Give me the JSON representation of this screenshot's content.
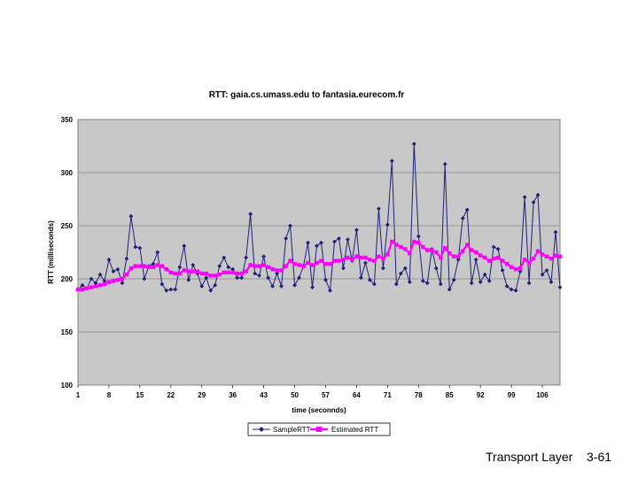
{
  "chart_data": {
    "type": "line",
    "title": "RTT: gaia.cs.umass.edu to fantasia.eurecom.fr",
    "xlabel": "time (seconnds)",
    "ylabel": "RTT (milliseconds)",
    "ylim": [
      100,
      350
    ],
    "yticks": [
      100,
      150,
      200,
      250,
      300,
      350
    ],
    "xlim": [
      1,
      110
    ],
    "xticks": [
      1,
      8,
      15,
      22,
      29,
      36,
      43,
      50,
      57,
      64,
      71,
      78,
      85,
      92,
      99,
      106
    ],
    "x_start": 1,
    "grid": "horizontal",
    "legend_position": "bottom",
    "series": [
      {
        "name": "SampleRTT",
        "color": "#1f1f7a",
        "marker": "diamond",
        "values": [
          190,
          194,
          191,
          200,
          196,
          204,
          198,
          218,
          207,
          209,
          196,
          219,
          259,
          230,
          229,
          200,
          212,
          214,
          225,
          195,
          189,
          190,
          190,
          211,
          231,
          199,
          213,
          205,
          193,
          201,
          189,
          194,
          212,
          220,
          211,
          209,
          201,
          201,
          220,
          261,
          205,
          203,
          221,
          201,
          193,
          205,
          193,
          238,
          250,
          194,
          201,
          212,
          234,
          192,
          231,
          234,
          199,
          189,
          235,
          238,
          210,
          237,
          217,
          246,
          201,
          215,
          199,
          195,
          266,
          210,
          251,
          311,
          195,
          205,
          210,
          197,
          327,
          240,
          198,
          196,
          228,
          210,
          195,
          308,
          190,
          199,
          218,
          257,
          265,
          196,
          218,
          197,
          204,
          198,
          230,
          228,
          208,
          193,
          190,
          189,
          207,
          277,
          196,
          272,
          279,
          204,
          208,
          197,
          244,
          192
        ],
        "line_color": "#1f1f7a"
      },
      {
        "name": "Estimated RTT",
        "color": "#ff00ff",
        "marker": "square",
        "values": [
          190,
          190,
          191,
          192,
          193,
          194,
          195,
          197,
          198,
          199,
          200,
          204,
          210,
          212,
          212,
          212,
          211,
          211,
          213,
          212,
          209,
          206,
          205,
          205,
          208,
          207,
          207,
          207,
          205,
          205,
          203,
          203,
          204,
          206,
          206,
          206,
          205,
          205,
          207,
          213,
          212,
          212,
          213,
          211,
          209,
          208,
          208,
          212,
          217,
          214,
          213,
          212,
          215,
          213,
          215,
          217,
          214,
          214,
          217,
          217,
          218,
          220,
          218,
          221,
          220,
          220,
          218,
          217,
          221,
          219,
          223,
          235,
          232,
          230,
          228,
          224,
          235,
          234,
          230,
          227,
          227,
          225,
          220,
          229,
          224,
          221,
          221,
          226,
          232,
          227,
          225,
          222,
          220,
          217,
          219,
          220,
          217,
          214,
          211,
          209,
          210,
          218,
          215,
          219,
          226,
          223,
          221,
          219,
          222,
          221
        ]
      }
    ]
  },
  "footer": {
    "section": "Transport Layer",
    "page": "3-61"
  }
}
